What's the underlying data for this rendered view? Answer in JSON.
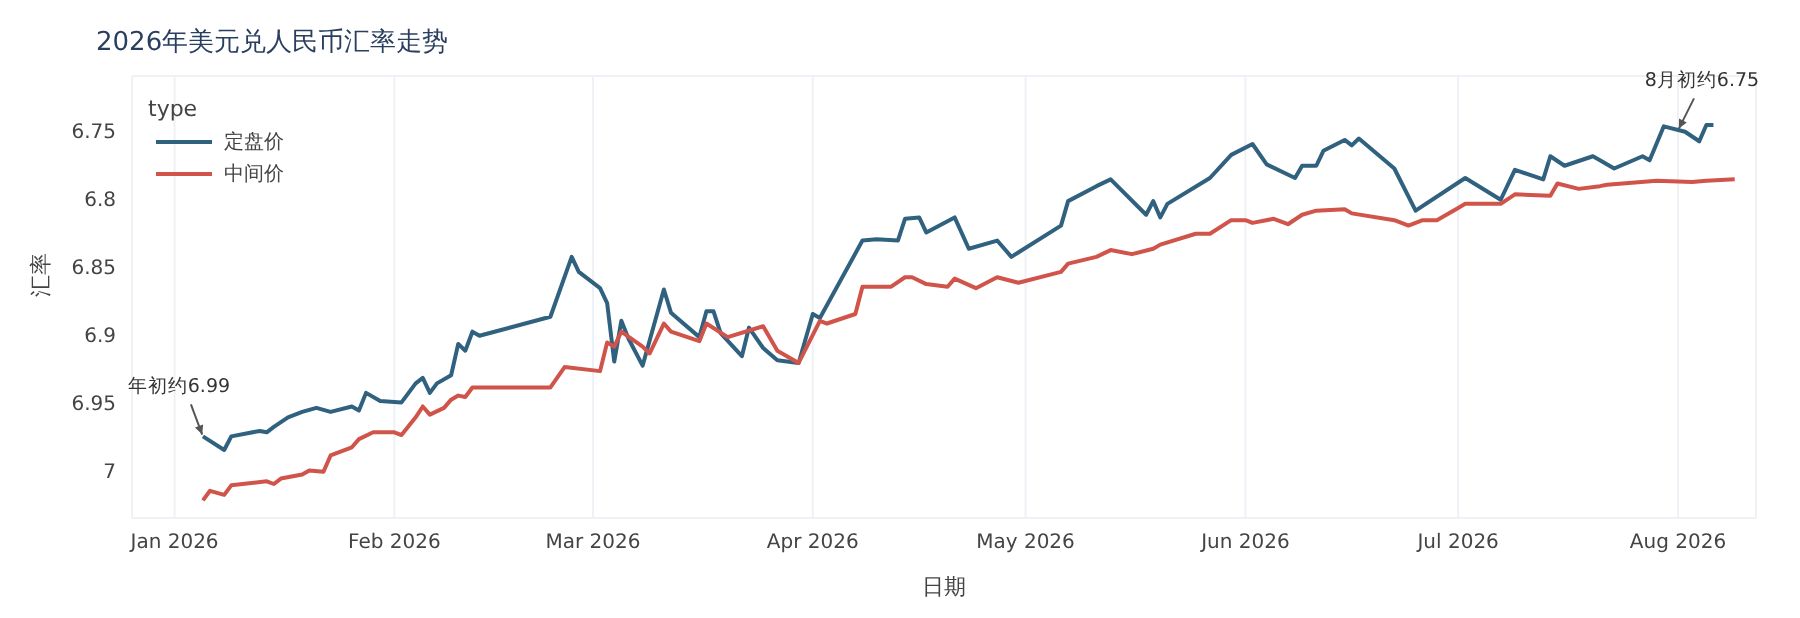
{
  "chart_data": {
    "type": "line",
    "title": "2026年美元兑人民币汇率走势",
    "xlabel": "日期",
    "ylabel": "汇率",
    "legend_title": "type",
    "legend": "top left",
    "grid": true,
    "line_style": "solid",
    "marker": "none",
    "xlim": [
      "2025-12-26",
      "2026-08-12"
    ],
    "xticks": [
      {
        "value": "2026-01-01",
        "label": "Jan 2026"
      },
      {
        "value": "2026-02-01",
        "label": "Feb 2026"
      },
      {
        "value": "2026-03-01",
        "label": "Mar 2026"
      },
      {
        "value": "2026-04-01",
        "label": "Apr 2026"
      },
      {
        "value": "2026-05-01",
        "label": "May 2026"
      },
      {
        "value": "2026-06-01",
        "label": "Jun 2026"
      },
      {
        "value": "2026-07-01",
        "label": "Jul 2026"
      },
      {
        "value": "2026-08-01",
        "label": "Aug 2026"
      }
    ],
    "ylim": [
      7.035,
      6.71
    ],
    "yticks": [
      6.75,
      6.8,
      6.85,
      6.9,
      6.95,
      7
    ],
    "annotations": [
      {
        "text": "年初约6.99",
        "x": "2026-01-05",
        "y": 6.975
      },
      {
        "text": "8月初约6.75",
        "x": "2026-08-01",
        "y": 6.75
      }
    ],
    "series": [
      {
        "name": "定盘价",
        "color": "#30617f",
        "x": [
          "2026-01-05",
          "2026-01-08",
          "2026-01-09",
          "2026-01-13",
          "2026-01-14",
          "2026-01-15",
          "2026-01-17",
          "2026-01-19",
          "2026-01-21",
          "2026-01-23",
          "2026-01-26",
          "2026-01-27",
          "2026-01-28",
          "2026-01-30",
          "2026-02-02",
          "2026-02-04",
          "2026-02-05",
          "2026-02-06",
          "2026-02-07",
          "2026-02-09",
          "2026-02-10",
          "2026-02-11",
          "2026-02-12",
          "2026-02-13",
          "2026-02-23",
          "2026-02-26",
          "2026-02-27",
          "2026-03-02",
          "2026-03-03",
          "2026-03-04",
          "2026-03-05",
          "2026-03-06",
          "2026-03-08",
          "2026-03-11",
          "2026-03-12",
          "2026-03-16",
          "2026-03-17",
          "2026-03-18",
          "2026-03-19",
          "2026-03-22",
          "2026-03-23",
          "2026-03-25",
          "2026-03-27",
          "2026-03-30",
          "2026-04-01",
          "2026-04-02",
          "2026-04-08",
          "2026-04-10",
          "2026-04-13",
          "2026-04-14",
          "2026-04-16",
          "2026-04-17",
          "2026-04-21",
          "2026-04-23",
          "2026-04-27",
          "2026-04-29",
          "2026-05-06",
          "2026-05-07",
          "2026-05-11",
          "2026-05-13",
          "2026-05-18",
          "2026-05-19",
          "2026-05-20",
          "2026-05-21",
          "2026-05-27",
          "2026-05-30",
          "2026-06-02",
          "2026-06-04",
          "2026-06-08",
          "2026-06-09",
          "2026-06-11",
          "2026-06-12",
          "2026-06-15",
          "2026-06-16",
          "2026-06-17",
          "2026-06-22",
          "2026-06-25",
          "2026-07-02",
          "2026-07-07",
          "2026-07-09",
          "2026-07-13",
          "2026-07-14",
          "2026-07-16",
          "2026-07-20",
          "2026-07-21",
          "2026-07-23",
          "2026-07-27",
          "2026-07-28",
          "2026-07-30",
          "2026-08-02",
          "2026-08-04",
          "2026-08-05",
          "2026-08-06"
        ],
        "values": [
          6.975,
          6.985,
          6.975,
          6.971,
          6.972,
          6.968,
          6.961,
          6.957,
          6.954,
          6.957,
          6.953,
          6.956,
          6.943,
          6.949,
          6.95,
          6.936,
          6.932,
          6.943,
          6.936,
          6.93,
          6.907,
          6.912,
          6.898,
          6.901,
          6.887,
          6.843,
          6.854,
          6.866,
          6.877,
          6.92,
          6.89,
          6.903,
          6.923,
          6.867,
          6.884,
          6.902,
          6.883,
          6.883,
          6.899,
          6.916,
          6.895,
          6.91,
          6.919,
          6.921,
          6.885,
          6.888,
          6.831,
          6.83,
          6.831,
          6.815,
          6.814,
          6.825,
          6.814,
          6.837,
          6.831,
          6.843,
          6.82,
          6.802,
          6.791,
          6.786,
          6.812,
          6.802,
          6.814,
          6.804,
          6.785,
          6.768,
          6.76,
          6.775,
          6.785,
          6.776,
          6.776,
          6.765,
          6.757,
          6.761,
          6.756,
          6.778,
          6.809,
          6.785,
          6.801,
          6.779,
          6.786,
          6.769,
          6.776,
          6.769,
          6.772,
          6.778,
          6.769,
          6.772,
          6.747,
          6.751,
          6.758,
          6.746,
          6.746
        ]
      },
      {
        "name": "中间价",
        "color": "#d0544a",
        "x": [
          "2026-01-05",
          "2026-01-06",
          "2026-01-08",
          "2026-01-09",
          "2026-01-14",
          "2026-01-15",
          "2026-01-16",
          "2026-01-19",
          "2026-01-20",
          "2026-01-22",
          "2026-01-23",
          "2026-01-26",
          "2026-01-27",
          "2026-01-29",
          "2026-02-01",
          "2026-02-02",
          "2026-02-04",
          "2026-02-05",
          "2026-02-06",
          "2026-02-08",
          "2026-02-09",
          "2026-02-10",
          "2026-02-11",
          "2026-02-12",
          "2026-02-23",
          "2026-02-25",
          "2026-03-02",
          "2026-03-03",
          "2026-03-04",
          "2026-03-05",
          "2026-03-08",
          "2026-03-09",
          "2026-03-11",
          "2026-03-12",
          "2026-03-16",
          "2026-03-17",
          "2026-03-20",
          "2026-03-25",
          "2026-03-27",
          "2026-03-30",
          "2026-04-02",
          "2026-04-03",
          "2026-04-07",
          "2026-04-08",
          "2026-04-12",
          "2026-04-14",
          "2026-04-15",
          "2026-04-17",
          "2026-04-20",
          "2026-04-21",
          "2026-04-24",
          "2026-04-27",
          "2026-04-30",
          "2026-05-06",
          "2026-05-07",
          "2026-05-11",
          "2026-05-13",
          "2026-05-16",
          "2026-05-19",
          "2026-05-20",
          "2026-05-25",
          "2026-05-27",
          "2026-05-30",
          "2026-06-01",
          "2026-06-02",
          "2026-06-05",
          "2026-06-07",
          "2026-06-09",
          "2026-06-11",
          "2026-06-15",
          "2026-06-16",
          "2026-06-22",
          "2026-06-24",
          "2026-06-26",
          "2026-06-28",
          "2026-07-01",
          "2026-07-02",
          "2026-07-07",
          "2026-07-09",
          "2026-07-14",
          "2026-07-15",
          "2026-07-18",
          "2026-07-21",
          "2026-07-22",
          "2026-07-29",
          "2026-08-03",
          "2026-08-05",
          "2026-08-09"
        ],
        "values": [
          7.022,
          7.015,
          7.018,
          7.011,
          7.008,
          7.01,
          7.006,
          7.003,
          7.0,
          7.001,
          6.989,
          6.983,
          6.977,
          6.972,
          6.972,
          6.974,
          6.961,
          6.953,
          6.959,
          6.954,
          6.948,
          6.945,
          6.946,
          6.939,
          6.939,
          6.924,
          6.927,
          6.906,
          6.909,
          6.898,
          6.909,
          6.914,
          6.892,
          6.898,
          6.905,
          6.892,
          6.902,
          6.894,
          6.912,
          6.921,
          6.89,
          6.892,
          6.885,
          6.865,
          6.865,
          6.858,
          6.858,
          6.863,
          6.865,
          6.859,
          6.866,
          6.858,
          6.862,
          6.854,
          6.848,
          6.843,
          6.838,
          6.841,
          6.837,
          6.834,
          6.826,
          6.826,
          6.816,
          6.816,
          6.818,
          6.815,
          6.819,
          6.812,
          6.809,
          6.808,
          6.811,
          6.816,
          6.82,
          6.816,
          6.816,
          6.807,
          6.804,
          6.804,
          6.797,
          6.798,
          6.789,
          6.793,
          6.791,
          6.79,
          6.787,
          6.788,
          6.787,
          6.786
        ]
      }
    ]
  }
}
